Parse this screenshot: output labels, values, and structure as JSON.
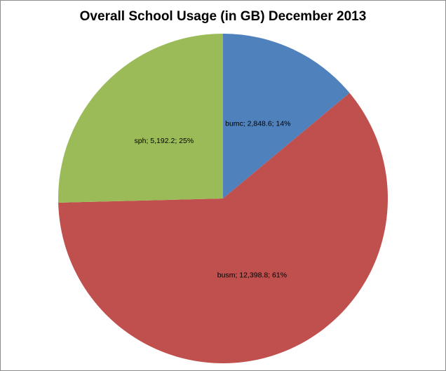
{
  "chart_data": {
    "type": "pie",
    "title": "Overall School Usage (in GB) December 2013",
    "slices": [
      {
        "label": "bumc",
        "value": 2848.6,
        "value_text": "2,848.6",
        "percent": "14%",
        "color": "#4f81bd"
      },
      {
        "label": "busm",
        "value": 12398.8,
        "value_text": "12,398.8",
        "percent": "61%",
        "color": "#c0504d"
      },
      {
        "label": "sph",
        "value": 5192.2,
        "value_text": "5,192.2",
        "percent": "25%",
        "color": "#9bbb59"
      }
    ],
    "data_label_format": "category; value; percent",
    "start": "12 o'clock",
    "direction": "clockwise",
    "legend": "none"
  }
}
